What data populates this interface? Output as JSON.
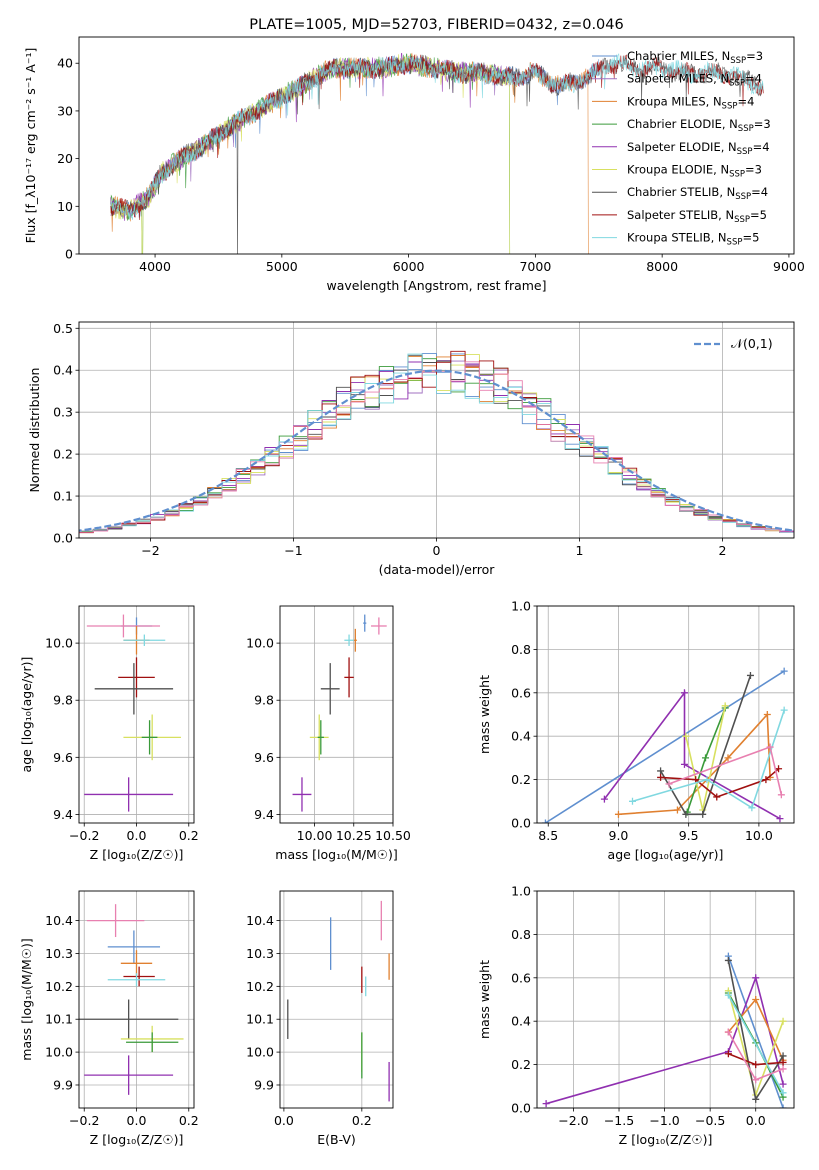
{
  "chart_data": [
    {
      "id": "spectrum",
      "type": "line",
      "title": "PLATE=1005, MJD=52703, FIBERID=0432, z=0.046",
      "xlabel": "wavelength [Angstrom, rest frame]",
      "ylabel": "Flux [f_λ10⁻¹⁷ erg cm⁻² s⁻¹ A⁻¹]",
      "xlim": [
        3400,
        9040
      ],
      "ylim": [
        0,
        45.5
      ],
      "xticks": [
        4000,
        5000,
        6000,
        7000,
        8000,
        9000
      ],
      "yticks": [
        0,
        10,
        20,
        30,
        40
      ],
      "grid": false,
      "legend_position": "upper-right",
      "x_anchor": [
        3650,
        3800,
        3950,
        4050,
        4200,
        4400,
        4600,
        4800,
        5000,
        5200,
        5400,
        5600,
        5800,
        6000,
        6200,
        6400,
        6600,
        6800,
        7000,
        7200,
        7400,
        7600,
        7800,
        8000,
        8200,
        8400,
        8600,
        8800
      ],
      "y_anchor": [
        10,
        9,
        12,
        17,
        20,
        23,
        27,
        30,
        33,
        36,
        39,
        39,
        39,
        40,
        39,
        38,
        38,
        37,
        38,
        35,
        37,
        40,
        39,
        39,
        38,
        38,
        37,
        35
      ],
      "series": [
        {
          "name": "Chabrier MILES, N_SSP=3",
          "label_pre": "Chabrier MILES, N",
          "label_post": "=3",
          "color": "#5f8fcf",
          "xrange": [
            3650,
            7500
          ],
          "drops": []
        },
        {
          "name": "Salpeter MILES, N_SSP=4",
          "label_pre": "Salpeter MILES, N",
          "label_post": "=4",
          "color": "#a070c0",
          "xrange": [
            3650,
            7500
          ],
          "drops": []
        },
        {
          "name": "Kroupa MILES, N_SSP=4",
          "label_pre": "Kroupa MILES, N",
          "label_post": "=4",
          "color": "#e08030",
          "xrange": [
            3650,
            7420
          ],
          "drops": [
            7420
          ]
        },
        {
          "name": "Chabrier ELODIE, N_SSP=3",
          "label_pre": "Chabrier ELODIE, N",
          "label_post": "=3",
          "color": "#3a9a3a",
          "xrange": [
            3650,
            6800
          ],
          "drops": [
            3900,
            6800
          ]
        },
        {
          "name": "Salpeter ELODIE, N_SSP=4",
          "label_pre": "Salpeter ELODIE, N",
          "label_post": "=4",
          "color": "#9030b0",
          "xrange": [
            3650,
            6800
          ],
          "drops": []
        },
        {
          "name": "Kroupa ELODIE, N_SSP=3",
          "label_pre": "Kroupa ELODIE, N",
          "label_post": "=3",
          "color": "#d8e060",
          "xrange": [
            3650,
            6800
          ],
          "drops": [
            3900,
            6800
          ]
        },
        {
          "name": "Chabrier STELIB, N_SSP=4",
          "label_pre": "Chabrier STELIB, N",
          "label_post": "=4",
          "color": "#505050",
          "xrange": [
            3650,
            8800
          ],
          "drops": [
            4650
          ]
        },
        {
          "name": "Salpeter STELIB, N_SSP=5",
          "label_pre": "Salpeter STELIB, N",
          "label_post": "=5",
          "color": "#a01010",
          "xrange": [
            3650,
            8800
          ],
          "drops": []
        },
        {
          "name": "Kroupa STELIB, N_SSP=5",
          "label_pre": "Kroupa STELIB, N",
          "label_post": "=5",
          "color": "#80d8e0",
          "xrange": [
            3650,
            8800
          ],
          "drops": []
        }
      ]
    },
    {
      "id": "residuals",
      "type": "line",
      "xlabel": "(data-model)/error",
      "ylabel": "Normed distribution",
      "xlim": [
        -2.5,
        2.5
      ],
      "ylim": [
        0,
        0.515
      ],
      "xticks": [
        -2,
        -1,
        0,
        1,
        2
      ],
      "yticks": [
        0.0,
        0.1,
        0.2,
        0.3,
        0.4,
        0.5
      ],
      "grid": true,
      "bin_width": 0.1,
      "colors": [
        "#5f8fcf",
        "#a070c0",
        "#e08030",
        "#3a9a3a",
        "#9030b0",
        "#d8e060",
        "#505050",
        "#a01010",
        "#80d8e0",
        "#e880b0"
      ],
      "reference_curve": {
        "name": "𝒩(0,1)",
        "color": "#5f8fcf",
        "dash": true
      },
      "legend_position": "upper-right"
    },
    {
      "id": "age-vs-Z",
      "type": "scatter",
      "xlabel": "Z [log₁₀(Z/Z☉)]",
      "ylabel": "age  [log₁₀(age/yr)]",
      "xlim": [
        -0.22,
        0.22
      ],
      "ylim": [
        9.37,
        10.13
      ],
      "xticks": [
        -0.2,
        0.0,
        0.2
      ],
      "yticks": [
        9.4,
        9.6,
        9.8,
        10.0
      ],
      "grid": true,
      "points": [
        {
          "x": 0.0,
          "y": 10.06,
          "xerr": 0.06,
          "yerr": 0.03,
          "color": "#5f8fcf"
        },
        {
          "x": -0.05,
          "y": 10.06,
          "xerr": 0.14,
          "yerr": 0.04,
          "color": "#e880b0"
        },
        {
          "x": 0.0,
          "y": 10.01,
          "xerr": 0.05,
          "yerr": 0.05,
          "color": "#e08030"
        },
        {
          "x": 0.03,
          "y": 10.01,
          "xerr": 0.08,
          "yerr": 0.02,
          "color": "#80d8e0"
        },
        {
          "x": 0.0,
          "y": 9.88,
          "xerr": 0.07,
          "yerr": 0.07,
          "color": "#a01010"
        },
        {
          "x": -0.01,
          "y": 9.84,
          "xerr": 0.15,
          "yerr": 0.09,
          "color": "#505050"
        },
        {
          "x": 0.06,
          "y": 9.67,
          "xerr": 0.11,
          "yerr": 0.08,
          "color": "#d8e060"
        },
        {
          "x": 0.05,
          "y": 9.67,
          "xerr": 0.03,
          "yerr": 0.06,
          "color": "#3a9a3a"
        },
        {
          "x": -0.03,
          "y": 9.47,
          "xerr": 0.17,
          "yerr": 0.06,
          "color": "#9030b0"
        }
      ]
    },
    {
      "id": "age-vs-mass",
      "type": "scatter",
      "xlabel": "mass [log₁₀(M/M☉)]",
      "ylabel": "",
      "xlim": [
        9.78,
        10.5
      ],
      "ylim": [
        9.37,
        10.13
      ],
      "xticks": [
        10.0,
        10.25,
        10.5
      ],
      "yticks": [
        9.4,
        9.6,
        9.8,
        10.0
      ],
      "grid": true,
      "points": [
        {
          "x": 10.32,
          "y": 10.07,
          "xerr": 0.01,
          "yerr": 0.03,
          "color": "#5f8fcf"
        },
        {
          "x": 10.41,
          "y": 10.06,
          "xerr": 0.05,
          "yerr": 0.03,
          "color": "#e880b0"
        },
        {
          "x": 10.26,
          "y": 10.01,
          "xerr": 0.01,
          "yerr": 0.04,
          "color": "#e08030"
        },
        {
          "x": 10.22,
          "y": 10.01,
          "xerr": 0.03,
          "yerr": 0.02,
          "color": "#80d8e0"
        },
        {
          "x": 10.22,
          "y": 9.88,
          "xerr": 0.03,
          "yerr": 0.07,
          "color": "#a01010"
        },
        {
          "x": 10.1,
          "y": 9.84,
          "xerr": 0.06,
          "yerr": 0.09,
          "color": "#505050"
        },
        {
          "x": 10.03,
          "y": 9.67,
          "xerr": 0.06,
          "yerr": 0.08,
          "color": "#d8e060"
        },
        {
          "x": 10.04,
          "y": 9.67,
          "xerr": 0.02,
          "yerr": 0.06,
          "color": "#3a9a3a"
        },
        {
          "x": 9.92,
          "y": 9.47,
          "xerr": 0.06,
          "yerr": 0.06,
          "color": "#9030b0"
        }
      ]
    },
    {
      "id": "weight-vs-age",
      "type": "line",
      "xlabel": "age  [log₁₀(age/yr)]",
      "ylabel": "mass weight",
      "xlim": [
        8.42,
        10.25
      ],
      "ylim": [
        0,
        1
      ],
      "xticks": [
        8.5,
        9.0,
        9.5,
        10.0
      ],
      "yticks": [
        0.0,
        0.2,
        0.4,
        0.6,
        0.8,
        1.0
      ],
      "grid": true,
      "series": [
        {
          "color": "#5f8fcf",
          "x": [
            8.48,
            10.18
          ],
          "y": [
            0.0,
            0.7
          ]
        },
        {
          "color": "#9030b0",
          "x": [
            8.9,
            9.47,
            9.47,
            10.15
          ],
          "y": [
            0.11,
            0.6,
            0.27,
            0.02
          ]
        },
        {
          "color": "#e08030",
          "x": [
            9.0,
            9.42,
            9.78,
            10.06,
            10.08
          ],
          "y": [
            0.04,
            0.06,
            0.3,
            0.5,
            0.21
          ]
        },
        {
          "color": "#3a9a3a",
          "x": [
            9.49,
            9.62,
            9.76
          ],
          "y": [
            0.05,
            0.3,
            0.53
          ]
        },
        {
          "color": "#d8e060",
          "x": [
            9.48,
            9.6,
            9.76
          ],
          "y": [
            0.4,
            0.06,
            0.54
          ]
        },
        {
          "color": "#505050",
          "x": [
            9.3,
            9.48,
            9.6,
            9.94
          ],
          "y": [
            0.24,
            0.04,
            0.04,
            0.68
          ]
        },
        {
          "color": "#a01010",
          "x": [
            9.3,
            9.55,
            9.7,
            10.05,
            10.14
          ],
          "y": [
            0.21,
            0.2,
            0.12,
            0.2,
            0.25
          ]
        },
        {
          "color": "#80d8e0",
          "x": [
            9.1,
            9.63,
            9.95,
            10.18
          ],
          "y": [
            0.1,
            0.2,
            0.07,
            0.52
          ]
        },
        {
          "color": "#e880b0",
          "x": [
            9.36,
            10.08,
            10.16
          ],
          "y": [
            0.18,
            0.35,
            0.13
          ]
        }
      ]
    },
    {
      "id": "mass-vs-Z",
      "type": "scatter",
      "xlabel": "Z [log₁₀(Z/Z☉)]",
      "ylabel": "mass [log₁₀(M/M☉)]",
      "xlim": [
        -0.22,
        0.22
      ],
      "ylim": [
        9.83,
        10.49
      ],
      "xticks": [
        -0.2,
        0.0,
        0.2
      ],
      "yticks": [
        9.9,
        10.0,
        10.1,
        10.2,
        10.3,
        10.4
      ],
      "grid": true,
      "points": [
        {
          "x": -0.08,
          "y": 10.4,
          "xerr": 0.11,
          "yerr": 0.05,
          "color": "#e880b0"
        },
        {
          "x": -0.01,
          "y": 10.32,
          "xerr": 0.1,
          "yerr": 0.05,
          "color": "#5f8fcf"
        },
        {
          "x": 0.0,
          "y": 10.27,
          "xerr": 0.06,
          "yerr": 0.04,
          "color": "#e08030"
        },
        {
          "x": 0.01,
          "y": 10.23,
          "xerr": 0.06,
          "yerr": 0.03,
          "color": "#a01010"
        },
        {
          "x": 0.0,
          "y": 10.22,
          "xerr": 0.11,
          "yerr": 0.02,
          "color": "#80d8e0"
        },
        {
          "x": -0.03,
          "y": 10.1,
          "xerr": 0.19,
          "yerr": 0.06,
          "color": "#505050"
        },
        {
          "x": 0.06,
          "y": 10.04,
          "xerr": 0.12,
          "yerr": 0.04,
          "color": "#d8e060"
        },
        {
          "x": 0.06,
          "y": 10.03,
          "xerr": 0.1,
          "yerr": 0.03,
          "color": "#3a9a3a"
        },
        {
          "x": -0.03,
          "y": 9.93,
          "xerr": 0.17,
          "yerr": 0.06,
          "color": "#9030b0"
        }
      ]
    },
    {
      "id": "mass-vs-ebv",
      "type": "scatter",
      "xlabel": "E(B-V)",
      "ylabel": "",
      "xlim": [
        -0.01,
        0.28
      ],
      "ylim": [
        9.83,
        10.49
      ],
      "xticks": [
        0.0,
        0.2
      ],
      "yticks": [
        9.9,
        10.0,
        10.1,
        10.2,
        10.3,
        10.4
      ],
      "grid": true,
      "points": [
        {
          "x": 0.25,
          "y": 10.4,
          "xerr": 0.0,
          "yerr": 0.06,
          "color": "#e880b0"
        },
        {
          "x": 0.12,
          "y": 10.33,
          "xerr": 0.0,
          "yerr": 0.08,
          "color": "#5f8fcf"
        },
        {
          "x": 0.27,
          "y": 10.26,
          "xerr": 0.0,
          "yerr": 0.04,
          "color": "#e08030"
        },
        {
          "x": 0.2,
          "y": 10.22,
          "xerr": 0.0,
          "yerr": 0.04,
          "color": "#a01010"
        },
        {
          "x": 0.21,
          "y": 10.2,
          "xerr": 0.0,
          "yerr": 0.03,
          "color": "#80d8e0"
        },
        {
          "x": 0.01,
          "y": 10.1,
          "xerr": 0.0,
          "yerr": 0.06,
          "color": "#505050"
        },
        {
          "x": 0.2,
          "y": 10.0,
          "xerr": 0.0,
          "yerr": 0.06,
          "color": "#d8e060"
        },
        {
          "x": 0.2,
          "y": 9.99,
          "xerr": 0.0,
          "yerr": 0.07,
          "color": "#3a9a3a"
        },
        {
          "x": 0.27,
          "y": 9.91,
          "xerr": 0.0,
          "yerr": 0.06,
          "color": "#9030b0"
        }
      ]
    },
    {
      "id": "weight-vs-Z",
      "type": "line",
      "xlabel": "Z [log₁₀(Z/Z☉)]",
      "ylabel": "mass weight",
      "xlim": [
        -2.4,
        0.42
      ],
      "ylim": [
        0,
        1
      ],
      "xticks": [
        -2.0,
        -1.5,
        -1.0,
        -0.5,
        0.0
      ],
      "yticks": [
        0.0,
        0.2,
        0.4,
        0.6,
        0.8,
        1.0
      ],
      "grid": true,
      "series": [
        {
          "color": "#5f8fcf",
          "x": [
            -0.3,
            0.3
          ],
          "y": [
            0.7,
            0.0
          ]
        },
        {
          "color": "#9030b0",
          "x": [
            -2.3,
            -0.3,
            0.0,
            0.3
          ],
          "y": [
            0.02,
            0.26,
            0.6,
            0.11
          ]
        },
        {
          "color": "#e08030",
          "x": [
            -0.3,
            0.0,
            0.3
          ],
          "y": [
            0.35,
            0.5,
            0.22
          ]
        },
        {
          "color": "#3a9a3a",
          "x": [
            -0.3,
            0.0,
            0.3
          ],
          "y": [
            0.53,
            0.3,
            0.05
          ]
        },
        {
          "color": "#d8e060",
          "x": [
            -0.3,
            0.0,
            0.3
          ],
          "y": [
            0.54,
            0.06,
            0.4
          ]
        },
        {
          "color": "#505050",
          "x": [
            -0.3,
            0.0,
            0.3
          ],
          "y": [
            0.68,
            0.04,
            0.24
          ]
        },
        {
          "color": "#a01010",
          "x": [
            -0.3,
            0.0,
            0.3
          ],
          "y": [
            0.25,
            0.2,
            0.21
          ]
        },
        {
          "color": "#80d8e0",
          "x": [
            -0.3,
            0.3
          ],
          "y": [
            0.52,
            0.07
          ]
        },
        {
          "color": "#e880b0",
          "x": [
            -0.3,
            0.0,
            0.3
          ],
          "y": [
            0.35,
            0.13,
            0.18
          ]
        }
      ]
    }
  ]
}
